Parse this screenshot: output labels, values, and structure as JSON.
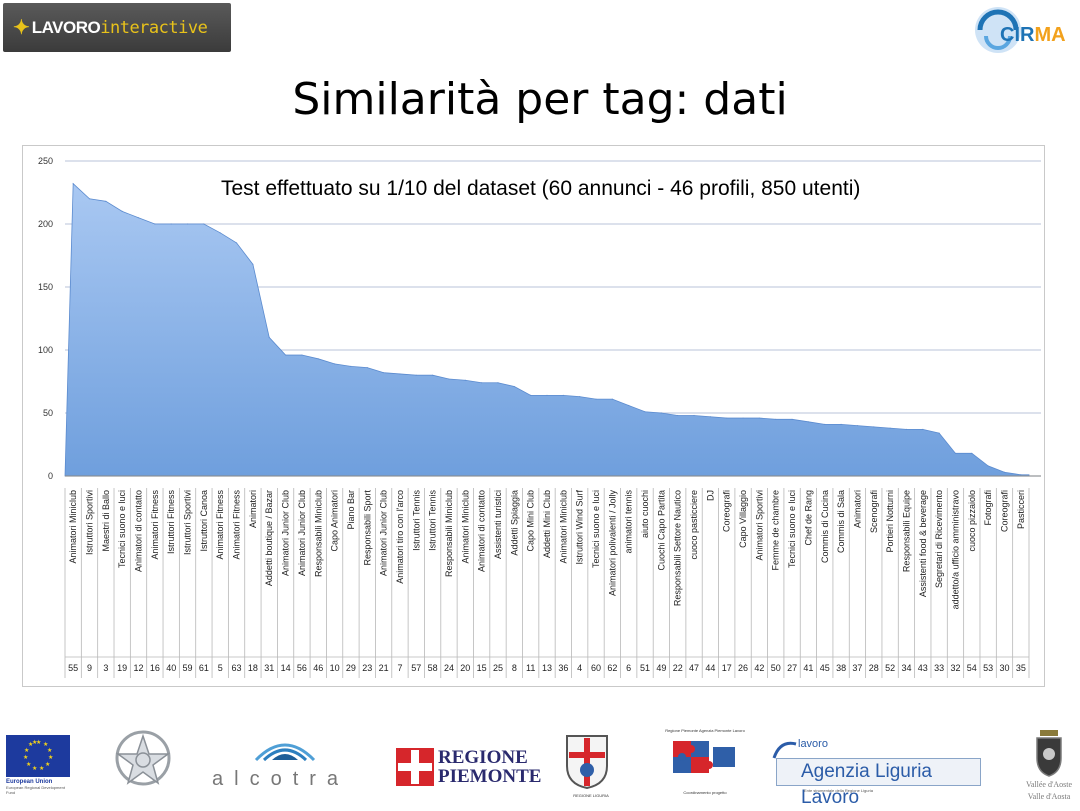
{
  "header": {
    "logo_left": {
      "mark": "✦",
      "word1": "LAVORO",
      "word2": "interactive"
    },
    "logo_right": {
      "word_main": "CIR",
      "word_accent": "MA"
    }
  },
  "slide": {
    "title": "Similarità per tag: dati",
    "subtitle": "Test effettuato su 1/10 del dataset (60 annunci - 46 profili, 850 utenti)"
  },
  "chart_data": {
    "type": "area",
    "ylim": [
      0,
      250
    ],
    "yticks": [
      0,
      50,
      100,
      150,
      200,
      250
    ],
    "grid": true,
    "fill_color": "#6f9fdd",
    "fill_color_top": "#a9c8f2",
    "grid_color": "#c6cfe0",
    "categories": [
      "Animatori Miniclub",
      "Istruttori Sportivi",
      "Maestri di Ballo",
      "Tecnici suono e luci",
      "Animatori di contatto",
      "Animatori Fitness",
      "Istruttori Fitness",
      "Istruttori Sportivi",
      "Istruttori Canoa",
      "Animatori Fitness",
      "Animatori Fitness",
      "Animatori",
      "Addetti boutique / Bazar",
      "Animatori Junior Club",
      "Animatori Junior Club",
      "Responsabili Miniclub",
      "Capo Animatori",
      "Piano Bar",
      "Responsabili Sport",
      "Animatori Junior Club",
      "Animatori tiro con l'arco",
      "Istruttori Tennis",
      "Istruttori Tennis",
      "Responsabili Miniclub",
      "Animatori Miniclub",
      "Animatori di contatto",
      "Assistenti turistici",
      "Addetti Spiaggia",
      "Capo Mini Club",
      "Addetti Mini Club",
      "Animatori Miniclub",
      "Istruttori Wind Surf",
      "Tecnici suono e luci",
      "Animatori polivalenti / Jolly",
      "animatori tennis",
      "aiuto cuochi",
      "Cuochi Capo Partita",
      "Responsabili Settore Nautico",
      "cuoco pasticciere",
      "DJ",
      "Coreografi",
      "Capo Villaggio",
      "Animatori Sportivi",
      "Femme de chambre",
      "Tecnici suono e luci",
      "Chef de Rang",
      "Commis di Cucina",
      "Commis di Sala",
      "Animatori",
      "Scenografi",
      "Portieri Notturni",
      "Responsabili Equipe",
      "Assistenti food & beverage",
      "Segretari di Ricevimento",
      "addetto/a ufficio amministravo",
      "cuoco pizzaiolo",
      "Fotografi",
      "Coreografi",
      "Pasticceri"
    ],
    "ids": [
      55,
      9,
      3,
      19,
      12,
      16,
      40,
      59,
      61,
      5,
      63,
      18,
      31,
      14,
      56,
      46,
      10,
      29,
      23,
      21,
      7,
      57,
      58,
      24,
      20,
      15,
      25,
      8,
      11,
      13,
      36,
      4,
      60,
      62,
      6,
      51,
      49,
      22,
      47,
      44,
      17,
      26,
      42,
      50,
      27,
      41,
      45,
      38,
      37,
      28,
      52,
      34,
      43,
      33,
      32,
      54,
      53,
      30,
      35
    ],
    "values": [
      232,
      220,
      218,
      210,
      205,
      200,
      200,
      200,
      200,
      193,
      185,
      168,
      110,
      96,
      96,
      93,
      89,
      87,
      86,
      82,
      81,
      80,
      80,
      77,
      76,
      74,
      74,
      71,
      64,
      64,
      64,
      63,
      61,
      61,
      56,
      51,
      50,
      48,
      48,
      47,
      46,
      46,
      46,
      45,
      45,
      43,
      41,
      41,
      40,
      39,
      38,
      37,
      37,
      34,
      18,
      18,
      8,
      3,
      1
    ]
  },
  "footer": {
    "eu_caption": "European Union",
    "eu_subcaption": "European Regional Development Fund",
    "alcotra": "alcotra",
    "piemonte_line1": "REGIONE",
    "piemonte_line2": "PIEMONTE",
    "liguria_caption": "REGIONE LIGURIA",
    "apl_caption_top": "Regione Piemonte\nAgenzia Piemonte Lavoro",
    "apl_caption_bottom": "Coordinamento progetto",
    "all_small": "lavoro",
    "all_big": "Agenzia Liguria Lavoro",
    "all_tiny": "Ente strumentale della Regione Liguria",
    "vda_line1": "Vallée d'Aoste",
    "vda_line2": "Valle d'Aosta"
  }
}
